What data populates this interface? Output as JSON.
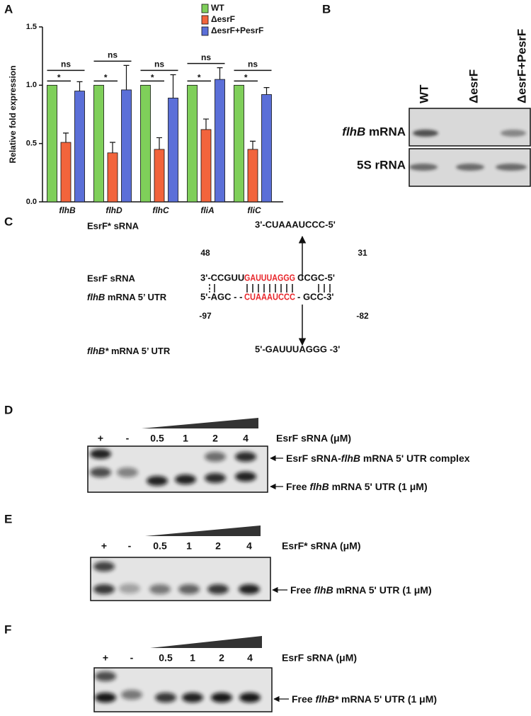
{
  "panel_labels": [
    "A",
    "B",
    "C",
    "D",
    "E",
    "F"
  ],
  "chart_data": {
    "type": "bar",
    "y_label": "Relative fold expression",
    "categories": [
      "flhB",
      "flhD",
      "flhC",
      "fliA",
      "fliC"
    ],
    "series": [
      {
        "name": "WT",
        "color": "#7fcf5a",
        "values": [
          1.0,
          1.0,
          1.0,
          1.0,
          1.0
        ]
      },
      {
        "name": "ΔesrF",
        "color": "#f2643c",
        "values": [
          0.51,
          0.42,
          0.45,
          0.62,
          0.45
        ],
        "errors": [
          0.08,
          0.09,
          0.1,
          0.09,
          0.07
        ]
      },
      {
        "name": "ΔesrF+PesrF",
        "color": "#5b6fd8",
        "values": [
          0.95,
          0.96,
          0.89,
          1.05,
          0.92
        ],
        "errors": [
          0.08,
          0.21,
          0.2,
          0.1,
          0.06
        ]
      }
    ],
    "significance": [
      {
        "mutant": "*",
        "complement": "ns"
      },
      {
        "mutant": "*",
        "complement": "ns"
      },
      {
        "mutant": "*",
        "complement": "ns"
      },
      {
        "mutant": "*",
        "complement": "ns"
      },
      {
        "mutant": "*",
        "complement": "ns"
      }
    ],
    "ylim": [
      0,
      1.5
    ],
    "yticks": [
      {
        "value": 0,
        "label": "0.0"
      },
      {
        "value": 0.5,
        "label": "0.5"
      },
      {
        "value": 1,
        "label": "1.0"
      },
      {
        "value": 1.5,
        "label": "1.5"
      }
    ],
    "legend": "top-right"
  },
  "blot": {
    "lanes": [
      "WT",
      "ΔesrF",
      "ΔesrF+PesrF"
    ],
    "rows": [
      [
        {
          "text": "flhB",
          "italic": true
        },
        {
          "text": " mRNA"
        }
      ],
      [
        {
          "text": "5S rRNA"
        }
      ]
    ]
  },
  "sequence_diagram": {
    "mutant_srna_label": "EsrF* sRNA",
    "mutant_srna_seq": "3'-CUAAAUCCC-5'",
    "srna_positions": [
      "48",
      "31"
    ],
    "srna_label": "EsrF sRNA",
    "srna_seq": [
      "3'-CCGUU",
      "GAUUUAGGG",
      "CCGC-5'"
    ],
    "utr_label": [
      {
        "text": "flhB",
        "italic": true
      },
      {
        "text": " mRNA 5’ UTR"
      }
    ],
    "utr_seq": [
      "5'-AGC - -",
      "CUAAAUCCC",
      "- GCC-3'"
    ],
    "utr_positions": [
      "-97",
      "-82"
    ],
    "mutant_utr_label": [
      {
        "text": "flhB*",
        "italic": true
      },
      {
        "text": " mRNA 5’ UTR"
      }
    ],
    "mutant_utr_seq": "5'-GAUUUAGGG -3'"
  },
  "gels": [
    {
      "lanes": [
        "+",
        "-",
        "0.5",
        "1",
        "2",
        "4"
      ],
      "concentration_label": "EsrF sRNA (μM)",
      "arrows": [
        [
          {
            "text": "EsrF sRNA-"
          },
          {
            "text": "flhB",
            "italic": true
          },
          {
            "text": " mRNA 5' UTR complex"
          }
        ],
        [
          {
            "text": "Free "
          },
          {
            "text": "flhB",
            "italic": true
          },
          {
            "text": " mRNA 5' UTR (1 μM)"
          }
        ]
      ]
    },
    {
      "lanes": [
        "+",
        "-",
        "0.5",
        "1",
        "2",
        "4"
      ],
      "concentration_label": "EsrF* sRNA (μM)",
      "arrows": [
        [
          {
            "text": "Free "
          },
          {
            "text": "flhB",
            "italic": true
          },
          {
            "text": " mRNA 5' UTR (1 μM)"
          }
        ]
      ]
    },
    {
      "lanes": [
        "+",
        "-",
        "0.5",
        "1",
        "2",
        "4"
      ],
      "concentration_label": "EsrF sRNA (μM)",
      "arrows": [
        [
          {
            "text": "Free "
          },
          {
            "text": "flhB*",
            "italic": true
          },
          {
            "text": " mRNA 5' UTR (1 μM)"
          }
        ]
      ]
    }
  ]
}
